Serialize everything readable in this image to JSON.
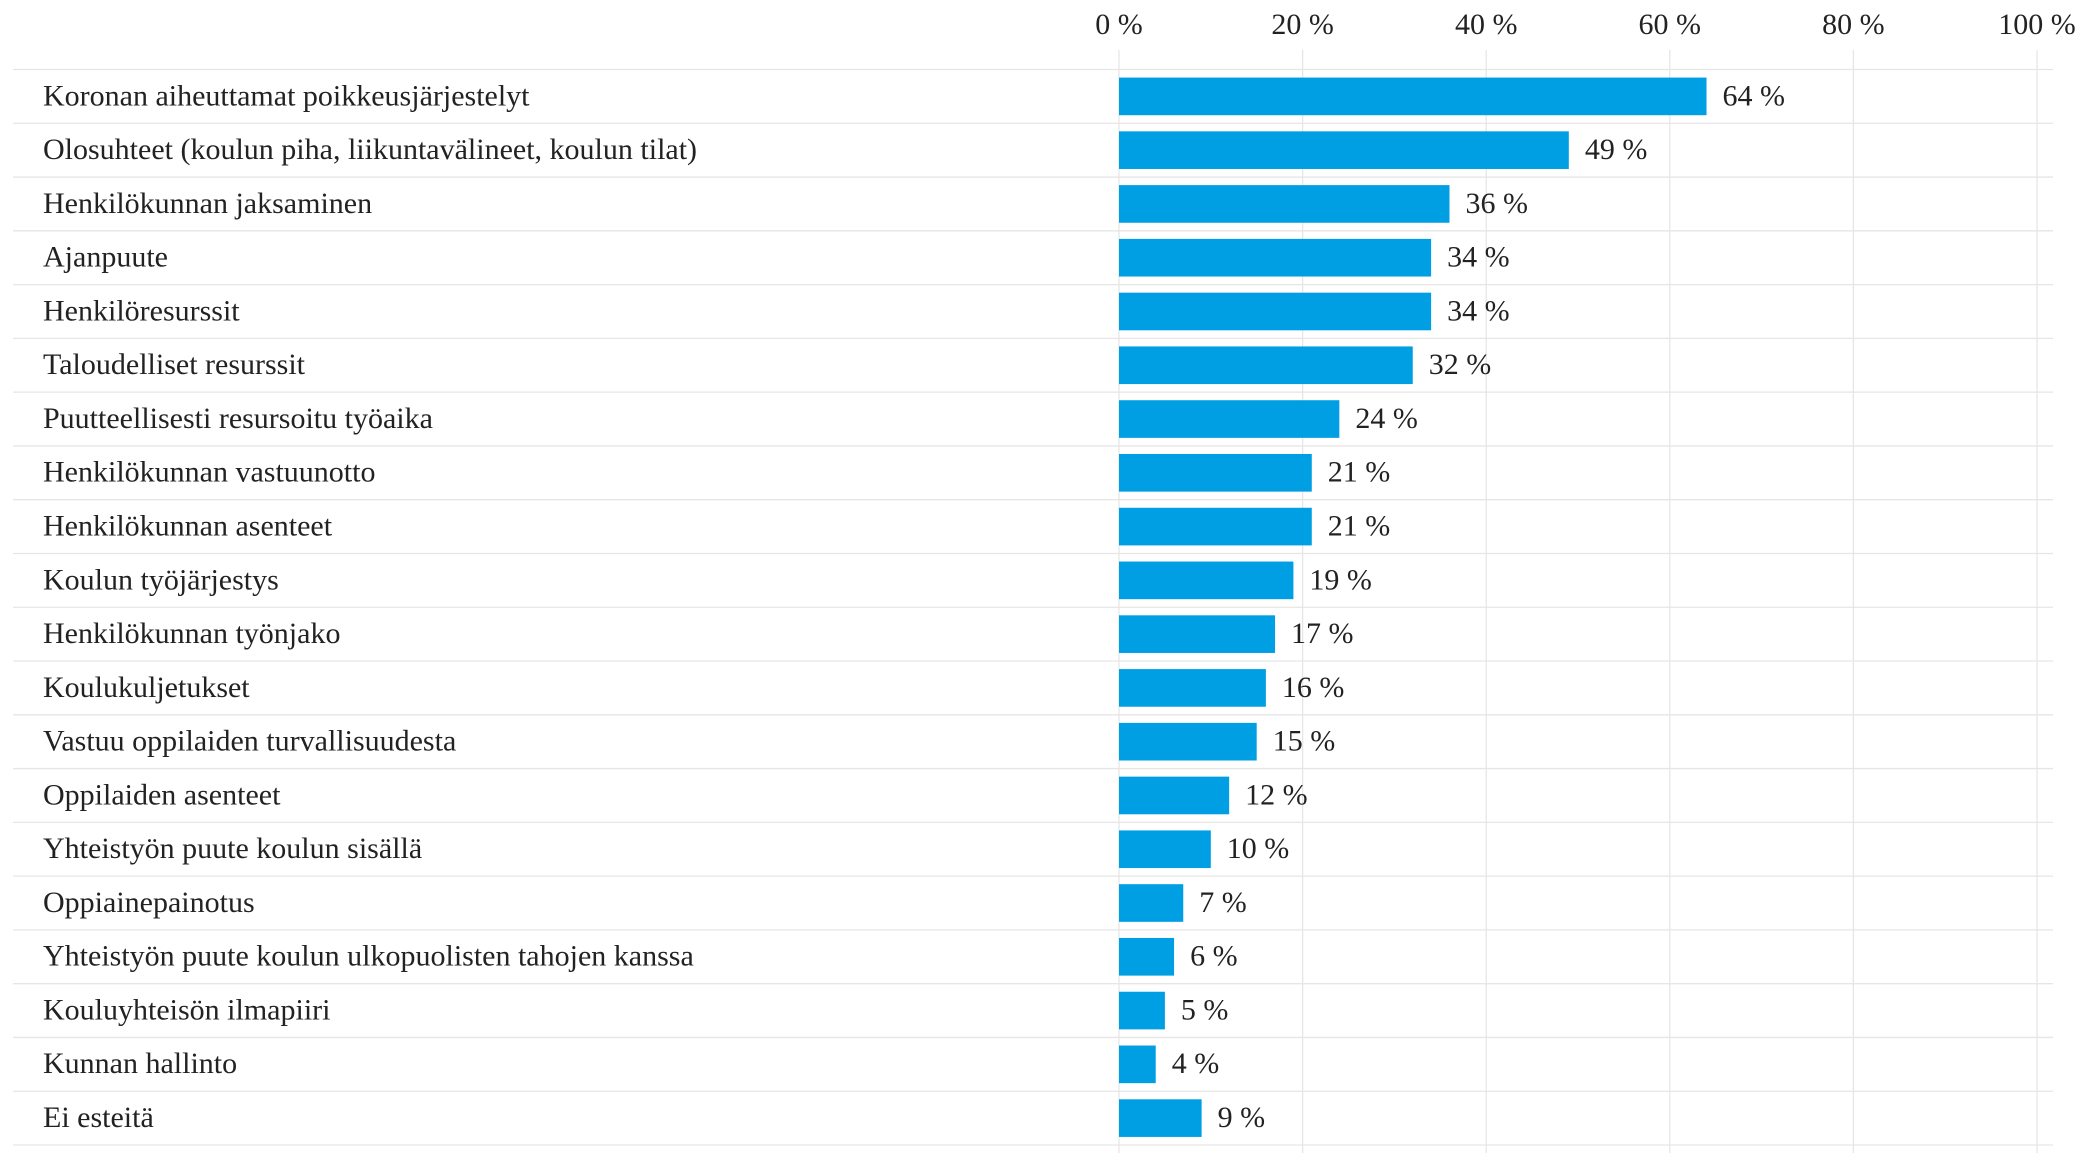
{
  "chart_data": {
    "type": "bar",
    "orientation": "horizontal",
    "categories": [
      "Koronan aiheuttamat poikkeusjärjestelyt",
      "Olosuhteet (koulun piha, liikuntavälineet, koulun tilat)",
      "Henkilökunnan jaksaminen",
      "Ajanpuute",
      "Henkilöresurssit",
      "Taloudelliset resurssit",
      "Puutteellisesti resursoitu työaika",
      "Henkilökunnan vastuunotto",
      "Henkilökunnan asenteet",
      "Koulun työjärjestys",
      "Henkilökunnan työnjako",
      "Koulukuljetukset",
      "Vastuu oppilaiden turvallisuudesta",
      "Oppilaiden asenteet",
      "Yhteistyön puute koulun sisällä",
      "Oppiainepainotus",
      "Yhteistyön puute koulun ulkopuolisten tahojen kanssa",
      "Kouluyhteisön ilmapiiri",
      "Kunnan hallinto",
      "Ei esteitä"
    ],
    "values": [
      64,
      49,
      36,
      34,
      34,
      32,
      24,
      21,
      21,
      19,
      17,
      16,
      15,
      12,
      10,
      7,
      6,
      5,
      4,
      9
    ],
    "value_labels": [
      "64 %",
      "49 %",
      "36 %",
      "34 %",
      "34 %",
      "32 %",
      "24 %",
      "21 %",
      "21 %",
      "19 %",
      "17 %",
      "16 %",
      "15 %",
      "12 %",
      "10 %",
      "7 %",
      "6 %",
      "5 %",
      "4 %",
      "9 %"
    ],
    "color": "#009fe3",
    "xlim": [
      0,
      100
    ],
    "xticks": [
      {
        "value": 0,
        "label": "0 %"
      },
      {
        "value": 20,
        "label": "20 %"
      },
      {
        "value": 40,
        "label": "40 %"
      },
      {
        "value": 60,
        "label": "60 %"
      },
      {
        "value": 80,
        "label": "80 %"
      },
      {
        "value": 100,
        "label": "100 %"
      }
    ],
    "grid": true
  }
}
